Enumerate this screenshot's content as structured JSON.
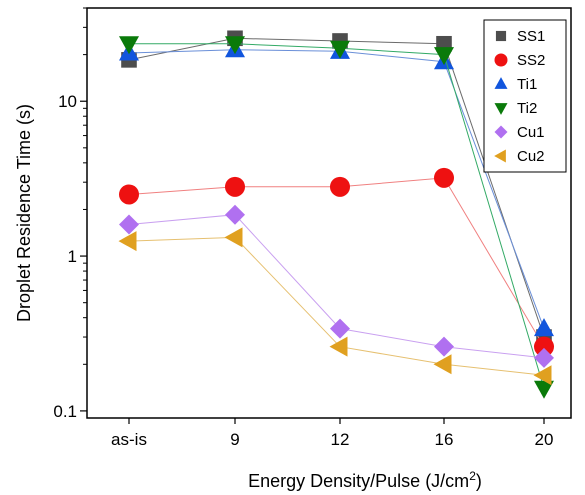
{
  "chart_data": {
    "type": "line",
    "x_scale": "categorical",
    "y_scale": "log",
    "categories": [
      "as-is",
      "9",
      "12",
      "16",
      "20"
    ],
    "xlabel": {
      "text": "Energy Density/Pulse (J/cm",
      "sup": "2",
      "tail": ")"
    },
    "ylabel": "Droplet Residence Time (s)",
    "ylim": [
      0.09,
      40
    ],
    "y_ticks": [
      0.1,
      1,
      10
    ],
    "y_tick_labels": [
      "0.1",
      "1",
      "10"
    ],
    "grid": false,
    "legend_position": "top-right",
    "series": [
      {
        "name": "SS1",
        "marker": "square",
        "color": "#4d4d4d",
        "line_color": "#6b6b6b",
        "values": [
          18.5,
          25.5,
          24.5,
          23.5,
          0.3
        ]
      },
      {
        "name": "SS2",
        "marker": "circle",
        "color": "#ee1111",
        "line_color": "#f08080",
        "values": [
          2.5,
          2.8,
          2.8,
          3.2,
          0.26
        ]
      },
      {
        "name": "Ti1",
        "marker": "triangle-up",
        "color": "#1155dd",
        "line_color": "#6a8fd8",
        "values": [
          20.5,
          21.5,
          21.0,
          18.0,
          0.34
        ]
      },
      {
        "name": "Ti2",
        "marker": "triangle-down",
        "color": "#0a7a0a",
        "line_color": "#33aa66",
        "values": [
          23.5,
          23.5,
          22.0,
          20.0,
          0.14
        ]
      },
      {
        "name": "Cu1",
        "marker": "diamond",
        "color": "#b070f0",
        "line_color": "#c9a0f0",
        "values": [
          1.6,
          1.85,
          0.34,
          0.26,
          0.22
        ]
      },
      {
        "name": "Cu2",
        "marker": "triangle-left",
        "color": "#e0a020",
        "line_color": "#e6c070",
        "values": [
          1.25,
          1.32,
          0.26,
          0.2,
          0.17
        ]
      }
    ]
  }
}
